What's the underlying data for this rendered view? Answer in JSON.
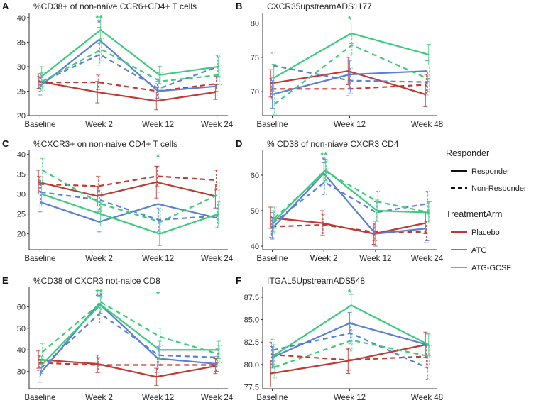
{
  "colors": {
    "placebo": "#c03a33",
    "atg": "#5b7fd6",
    "atg_gcsf": "#3dcc7c",
    "panel_bg": "#ffffff",
    "axis": "#333333"
  },
  "legend": {
    "responder_title": "Responder",
    "responder_items": [
      {
        "label": "Responder",
        "style": "solid"
      },
      {
        "label": "Non-Responder",
        "style": "dashed"
      }
    ],
    "arm_title": "TreatmentArm",
    "arm_items": [
      {
        "label": "Placebo",
        "color": "#c03a33"
      },
      {
        "label": "ATG",
        "color": "#5b7fd6"
      },
      {
        "label": "ATG-GCSF",
        "color": "#3dcc7c"
      }
    ]
  },
  "chart_data": [
    {
      "letter": "A",
      "type": "line",
      "title": "%CD38+ of non-naïve CCR6+CD4+ T cells",
      "categories": [
        "Baseline",
        "Week 2",
        "Week 12",
        "Week 24"
      ],
      "ylim": [
        20,
        41
      ],
      "yticks": [
        20,
        25,
        30,
        35,
        40
      ],
      "series": [
        {
          "arm": "placebo",
          "style": "solid",
          "values": [
            27.0,
            24.8,
            23.0,
            24.8
          ],
          "errors": [
            1.5,
            2.2,
            1.8,
            1.5
          ]
        },
        {
          "arm": "placebo",
          "style": "dashed",
          "values": [
            26.8,
            26.8,
            25.0,
            26.5
          ],
          "errors": [
            1.2,
            1.5,
            1.5,
            1.5
          ]
        },
        {
          "arm": "atg",
          "style": "solid",
          "values": [
            26.0,
            35.5,
            25.0,
            26.0
          ],
          "errors": [
            1.8,
            2.5,
            2.0,
            2.0
          ]
        },
        {
          "arm": "atg",
          "style": "dashed",
          "values": [
            26.8,
            32.5,
            25.5,
            30.0
          ],
          "errors": [
            1.8,
            2.2,
            2.0,
            2.2
          ]
        },
        {
          "arm": "atg_gcsf",
          "style": "solid",
          "values": [
            28.0,
            37.5,
            28.3,
            30.0
          ],
          "errors": [
            2.0,
            2.5,
            1.8,
            2.0
          ]
        },
        {
          "arm": "atg_gcsf",
          "style": "dashed",
          "values": [
            27.0,
            33.5,
            27.0,
            28.3
          ],
          "errors": [
            1.8,
            2.2,
            1.8,
            2.0
          ]
        }
      ],
      "annotations": [
        {
          "category": "Week 2",
          "text": "**",
          "arm": "atg_gcsf",
          "value": 40.3
        },
        {
          "category": "Week 2",
          "text": "*",
          "arm": "atg",
          "value": 39.4
        }
      ]
    },
    {
      "letter": "B",
      "type": "line",
      "title": "CXCR35upstreamADS1177",
      "categories": [
        "Baseline",
        "Week 12",
        "Week 48"
      ],
      "ylim": [
        66.5,
        81.5
      ],
      "yticks": [
        70,
        75,
        80
      ],
      "series": [
        {
          "arm": "placebo",
          "style": "solid",
          "values": [
            71.2,
            73.0,
            69.6
          ],
          "errors": [
            2.0,
            2.0,
            1.8
          ]
        },
        {
          "arm": "placebo",
          "style": "dashed",
          "values": [
            70.4,
            70.4,
            71.0
          ],
          "errors": [
            1.5,
            1.0,
            1.5
          ]
        },
        {
          "arm": "atg",
          "style": "solid",
          "values": [
            69.6,
            72.5,
            73.0
          ],
          "errors": [
            2.0,
            2.0,
            1.5
          ]
        },
        {
          "arm": "atg",
          "style": "dashed",
          "values": [
            73.8,
            71.6,
            71.4
          ],
          "errors": [
            1.8,
            1.8,
            1.5
          ]
        },
        {
          "arm": "atg_gcsf",
          "style": "solid",
          "values": [
            72.0,
            78.5,
            75.4
          ],
          "errors": [
            2.0,
            1.5,
            1.5
          ]
        },
        {
          "arm": "atg_gcsf",
          "style": "dashed",
          "values": [
            68.2,
            76.8,
            71.8
          ],
          "errors": [
            1.5,
            1.5,
            1.8
          ]
        }
      ],
      "annotations": [
        {
          "category": "Week 12",
          "text": "*",
          "arm": "atg_gcsf",
          "value": 80.8
        }
      ]
    },
    {
      "letter": "C",
      "type": "line",
      "title": "%CXCR3+ on non-naive CD4+ T cells",
      "categories": [
        "Baseline",
        "Week 2",
        "Week 12",
        "Week 24"
      ],
      "ylim": [
        16,
        41
      ],
      "yticks": [
        20,
        25,
        30,
        35,
        40
      ],
      "series": [
        {
          "arm": "placebo",
          "style": "solid",
          "values": [
            33.0,
            29.5,
            33.0,
            29.5
          ],
          "errors": [
            3.0,
            2.5,
            4.0,
            3.0
          ]
        },
        {
          "arm": "placebo",
          "style": "dashed",
          "values": [
            32.5,
            32.0,
            34.5,
            33.5
          ],
          "errors": [
            2.0,
            2.5,
            2.5,
            2.5
          ]
        },
        {
          "arm": "atg",
          "style": "solid",
          "values": [
            28.0,
            23.0,
            27.5,
            24.0
          ],
          "errors": [
            2.5,
            2.5,
            3.0,
            2.5
          ]
        },
        {
          "arm": "atg",
          "style": "dashed",
          "values": [
            30.5,
            28.5,
            23.5,
            24.5
          ],
          "errors": [
            3.0,
            2.5,
            3.0,
            3.0
          ]
        },
        {
          "arm": "atg_gcsf",
          "style": "solid",
          "values": [
            30.0,
            25.0,
            20.0,
            25.0
          ],
          "errors": [
            3.0,
            3.0,
            3.0,
            3.0
          ]
        },
        {
          "arm": "atg_gcsf",
          "style": "dashed",
          "values": [
            36.0,
            27.5,
            23.0,
            30.0
          ],
          "errors": [
            3.0,
            3.0,
            3.0,
            3.0
          ]
        }
      ],
      "annotations": [
        {
          "category": "Week 12",
          "text": "*",
          "arm": "atg_gcsf",
          "value": 39.8
        }
      ]
    },
    {
      "letter": "D",
      "type": "line",
      "title": "% CD38 of non-niave CXCR3 CD4",
      "categories": [
        "Baseline",
        "Week 2",
        "Week 12",
        "Week 24"
      ],
      "ylim": [
        39,
        67
      ],
      "yticks": [
        40,
        50,
        60
      ],
      "series": [
        {
          "arm": "placebo",
          "style": "solid",
          "values": [
            48.0,
            46.5,
            43.5,
            46.5
          ],
          "errors": [
            3.0,
            3.5,
            3.0,
            3.0
          ]
        },
        {
          "arm": "placebo",
          "style": "dashed",
          "values": [
            45.5,
            46.0,
            44.0,
            44.0
          ],
          "errors": [
            3.0,
            3.0,
            2.5,
            3.0
          ]
        },
        {
          "arm": "atg",
          "style": "solid",
          "values": [
            45.0,
            60.5,
            43.5,
            45.0
          ],
          "errors": [
            3.0,
            3.0,
            3.5,
            3.5
          ]
        },
        {
          "arm": "atg",
          "style": "dashed",
          "values": [
            46.5,
            58.0,
            49.5,
            52.0
          ],
          "errors": [
            3.0,
            3.5,
            3.0,
            3.5
          ]
        },
        {
          "arm": "atg_gcsf",
          "style": "solid",
          "values": [
            47.0,
            61.5,
            50.0,
            49.5
          ],
          "errors": [
            3.0,
            3.0,
            3.0,
            3.0
          ]
        },
        {
          "arm": "atg_gcsf",
          "style": "dashed",
          "values": [
            48.0,
            61.0,
            52.5,
            49.5
          ],
          "errors": [
            3.0,
            3.0,
            3.0,
            3.0
          ]
        }
      ],
      "annotations": [
        {
          "category": "Week 2",
          "text": "**",
          "arm": "atg_gcsf",
          "value": 66.2
        },
        {
          "category": "Week 2",
          "text": "*",
          "arm": "atg",
          "value": 64.8
        }
      ]
    },
    {
      "letter": "E",
      "type": "line",
      "title": "%CD38 of CXCR3 not-naice CD8",
      "categories": [
        "Baseline",
        "Week 2",
        "Week 12",
        "Week 24"
      ],
      "ylim": [
        22,
        69
      ],
      "yticks": [
        30,
        40,
        50,
        60
      ],
      "series": [
        {
          "arm": "placebo",
          "style": "solid",
          "values": [
            35.5,
            33.5,
            27.5,
            32.5
          ],
          "errors": [
            4.0,
            4.0,
            4.0,
            3.5
          ]
        },
        {
          "arm": "placebo",
          "style": "dashed",
          "values": [
            34.0,
            33.0,
            33.0,
            33.0
          ],
          "errors": [
            3.5,
            3.5,
            3.5,
            3.0
          ]
        },
        {
          "arm": "atg",
          "style": "solid",
          "values": [
            29.0,
            61.5,
            36.0,
            33.5
          ],
          "errors": [
            4.0,
            3.5,
            4.0,
            3.5
          ]
        },
        {
          "arm": "atg",
          "style": "dashed",
          "values": [
            31.5,
            57.0,
            37.5,
            36.5
          ],
          "errors": [
            4.0,
            4.5,
            4.0,
            4.0
          ]
        },
        {
          "arm": "atg_gcsf",
          "style": "solid",
          "values": [
            33.0,
            61.0,
            40.0,
            40.0
          ],
          "errors": [
            4.0,
            4.0,
            4.0,
            4.0
          ]
        },
        {
          "arm": "atg_gcsf",
          "style": "dashed",
          "values": [
            39.0,
            62.0,
            46.0,
            38.0
          ],
          "errors": [
            4.0,
            4.0,
            4.0,
            4.0
          ]
        }
      ],
      "annotations": [
        {
          "category": "Week 2",
          "text": "**",
          "arm": "atg_gcsf",
          "value": 67.5
        },
        {
          "category": "Week 2",
          "text": "**",
          "arm": "atg",
          "value": 65.8
        },
        {
          "category": "Week 12",
          "text": "*",
          "arm": "atg_gcsf",
          "value": 66.5
        }
      ]
    },
    {
      "letter": "F",
      "type": "line",
      "title": "ITGAL5UpstreamADS548",
      "categories": [
        "Baseline",
        "Week 12",
        "Week 48"
      ],
      "ylim": [
        77.3,
        88.6
      ],
      "yticks": [
        77.5,
        80.0,
        82.5,
        85.0,
        87.5
      ],
      "series": [
        {
          "arm": "placebo",
          "style": "solid",
          "values": [
            79.0,
            80.4,
            82.2
          ],
          "errors": [
            1.5,
            1.4,
            1.4
          ]
        },
        {
          "arm": "placebo",
          "style": "dashed",
          "values": [
            81.1,
            80.5,
            80.9
          ],
          "errors": [
            1.4,
            1.2,
            1.2
          ]
        },
        {
          "arm": "atg",
          "style": "solid",
          "values": [
            80.8,
            84.6,
            82.2
          ],
          "errors": [
            1.2,
            1.2,
            1.2
          ]
        },
        {
          "arm": "atg",
          "style": "dashed",
          "values": [
            81.6,
            83.5,
            79.6
          ],
          "errors": [
            1.2,
            1.2,
            1.3
          ]
        },
        {
          "arm": "atg_gcsf",
          "style": "solid",
          "values": [
            81.0,
            86.6,
            82.2
          ],
          "errors": [
            1.2,
            1.2,
            1.2
          ]
        },
        {
          "arm": "atg_gcsf",
          "style": "dashed",
          "values": [
            79.7,
            82.7,
            80.9
          ],
          "errors": [
            1.2,
            1.2,
            1.2
          ]
        }
      ],
      "annotations": [
        {
          "category": "Week 12",
          "text": "*",
          "arm": "atg_gcsf",
          "value": 88.2
        }
      ]
    }
  ]
}
